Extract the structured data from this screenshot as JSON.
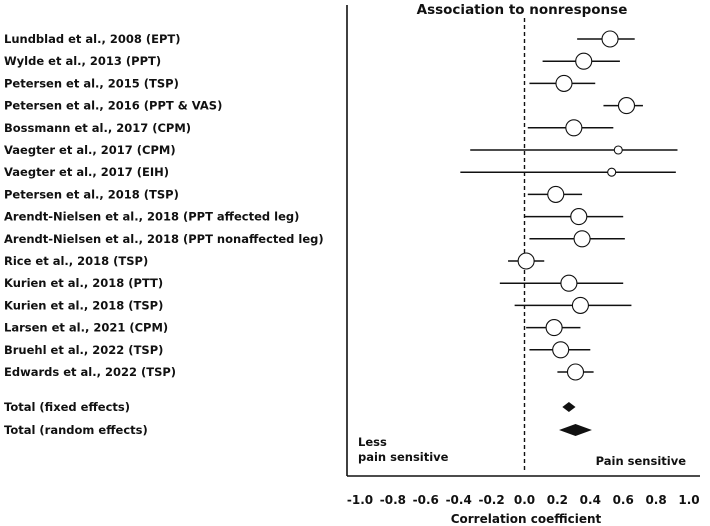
{
  "chart_data": {
    "type": "forest",
    "title": "Association to nonresponse",
    "xlabel": "Correlation coefficient",
    "xlim": [
      -1.0,
      1.0
    ],
    "xticks": [
      "-1.0",
      "-0.8",
      "-0.6",
      "-0.4",
      "-0.2",
      "0.0",
      "0.2",
      "0.4",
      "0.6",
      "0.8",
      "1.0"
    ],
    "reference_line": 0.0,
    "left_annotation": [
      "Less",
      "pain sensitive"
    ],
    "right_annotation": "Pain sensitive",
    "studies": [
      {
        "label": "Lundblad et al., 2008 (EPT)",
        "estimate": 0.52,
        "ci": [
          0.32,
          0.67
        ],
        "weight": "large"
      },
      {
        "label": "Wylde et al., 2013 (PPT)",
        "estimate": 0.36,
        "ci": [
          0.11,
          0.58
        ],
        "weight": "large"
      },
      {
        "label": "Petersen et al., 2015 (TSP)",
        "estimate": 0.24,
        "ci": [
          0.03,
          0.43
        ],
        "weight": "large"
      },
      {
        "label": "Petersen et al., 2016 (PPT & VAS)",
        "estimate": 0.62,
        "ci": [
          0.48,
          0.72
        ],
        "weight": "large"
      },
      {
        "label": "Bossmann et al., 2017 (CPM)",
        "estimate": 0.3,
        "ci": [
          0.02,
          0.54
        ],
        "weight": "large"
      },
      {
        "label": "Vaegter et al., 2017 (CPM)",
        "estimate": 0.57,
        "ci": [
          -0.33,
          0.93
        ],
        "weight": "small"
      },
      {
        "label": "Vaegter et al., 2017 (EIH)",
        "estimate": 0.53,
        "ci": [
          -0.39,
          0.92
        ],
        "weight": "small"
      },
      {
        "label": "Petersen et al., 2018 (TSP)",
        "estimate": 0.19,
        "ci": [
          0.02,
          0.35
        ],
        "weight": "large"
      },
      {
        "label": "Arendt-Nielsen et al., 2018 (PPT affected leg)",
        "estimate": 0.33,
        "ci": [
          0.0,
          0.6
        ],
        "weight": "large"
      },
      {
        "label": "Arendt-Nielsen et al., 2018 (PPT nonaffected leg)",
        "estimate": 0.35,
        "ci": [
          0.03,
          0.61
        ],
        "weight": "large"
      },
      {
        "label": "Rice et al., 2018 (TSP)",
        "estimate": 0.01,
        "ci": [
          -0.1,
          0.12
        ],
        "weight": "large"
      },
      {
        "label": "Kurien et al., 2018 (PTT)",
        "estimate": 0.27,
        "ci": [
          -0.15,
          0.6
        ],
        "weight": "large"
      },
      {
        "label": "Kurien et al., 2018 (TSP)",
        "estimate": 0.34,
        "ci": [
          -0.06,
          0.65
        ],
        "weight": "large"
      },
      {
        "label": "Larsen et al., 2021 (CPM)",
        "estimate": 0.18,
        "ci": [
          0.01,
          0.34
        ],
        "weight": "large"
      },
      {
        "label": "Bruehl et al., 2022 (TSP)",
        "estimate": 0.22,
        "ci": [
          0.03,
          0.4
        ],
        "weight": "large"
      },
      {
        "label": "Edwards et al., 2022 (TSP)",
        "estimate": 0.31,
        "ci": [
          0.2,
          0.42
        ],
        "weight": "large"
      }
    ],
    "summaries": [
      {
        "label": "Total (fixed effects)",
        "estimate": 0.27,
        "ci": [
          0.23,
          0.31
        ]
      },
      {
        "label": "Total (random effects)",
        "estimate": 0.31,
        "ci": [
          0.21,
          0.41
        ]
      }
    ]
  }
}
